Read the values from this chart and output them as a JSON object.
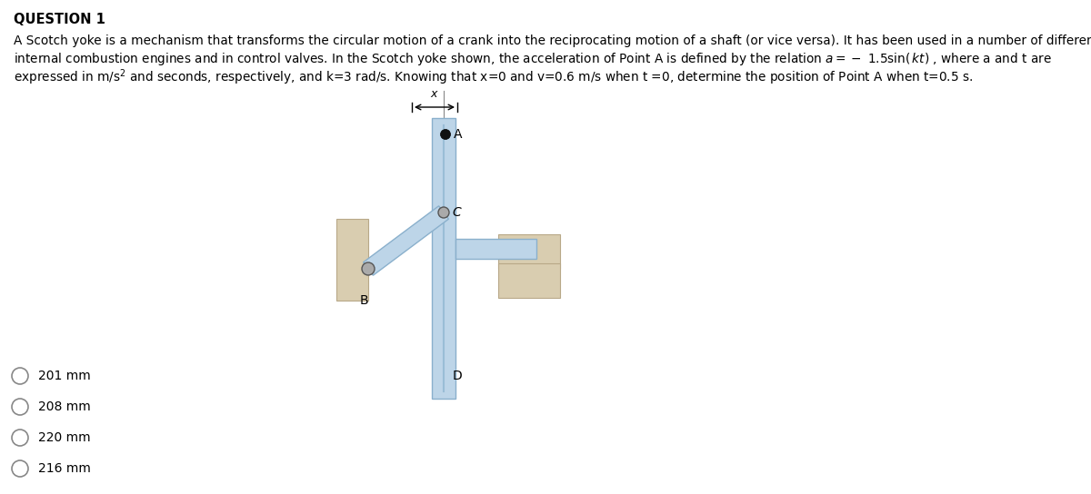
{
  "title": "QUESTION 1",
  "title_fontsize": 10.5,
  "body_fontsize": 9.8,
  "option_fontsize": 10,
  "bg_color": "#ffffff",
  "text_color": "#000000",
  "line1": "A Scotch yoke is a mechanism that transforms the circular motion of a crank into the reciprocating motion of a shaft (or vice versa). It has been used in a number of different",
  "line2_pre": "internal combustion engines and in control valves. In the Scotch yoke shown, the acceleration of Point A is defined by the relation ",
  "line2_math": "$a = -\\ 1.5\\mathrm{sin}(\\,kt)$",
  "line2_post": " , where a and t are",
  "line3_pre": "expressed in m/s",
  "line3_sup": "$^2$",
  "line3_post": " and seconds, respectively, and k=3 rad/s. Knowing that x=0 and v=0.6 m/s when t =0, determine the position of Point A when t=0.5 s.",
  "options": [
    "201 mm",
    "208 mm",
    "220 mm",
    "216 mm"
  ],
  "shaft_color": "#bdd5e8",
  "shaft_border": "#8ab0cc",
  "arm_color": "#bdd5e8",
  "arm_border": "#8ab0cc",
  "wall_color": "#d9cdb0",
  "wall_border": "#b8a888",
  "slider_color": "#d9cdb0",
  "slider_border": "#b8a888",
  "hbar_color": "#bdd5e8",
  "hbar_border": "#8ab0cc",
  "pin_dark": "#333333",
  "pin_mid": "#888888",
  "slot_color": "#9abdd6"
}
